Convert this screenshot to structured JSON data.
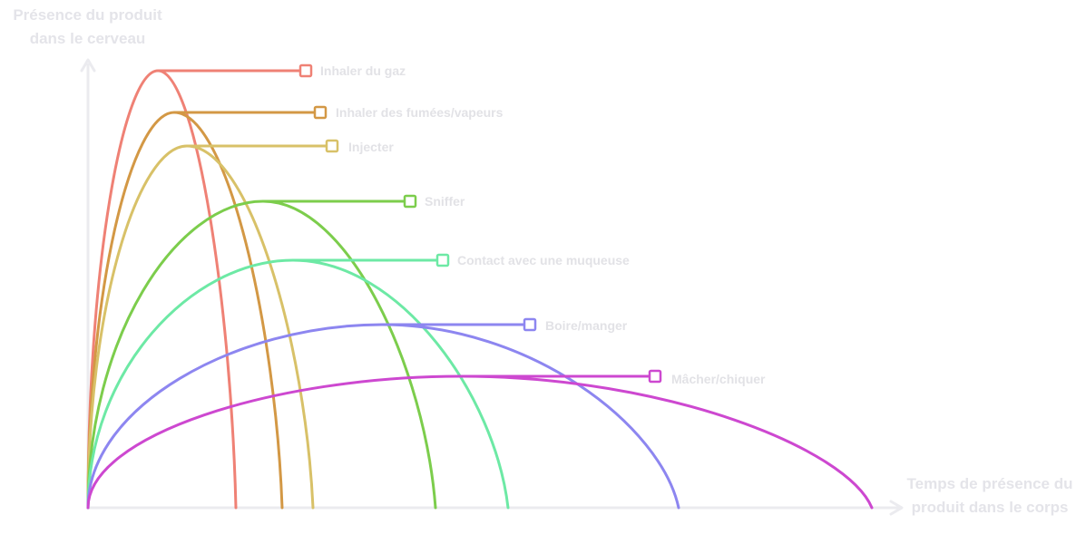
{
  "axes": {
    "y_title": "Présence du produit dans le cerveau",
    "x_title": "Temps de présence du produit dans le corps",
    "axis_color": "#ebebef",
    "title_color": "#e4e4e9"
  },
  "routes": [
    {
      "key": "gaz",
      "label": "Inhaler du gaz",
      "color": "#ef8175"
    },
    {
      "key": "fumees",
      "label": "Inhaler des fumées/vapeurs",
      "color": "#d39845"
    },
    {
      "key": "injecter",
      "label": "Injecter",
      "color": "#d8c168"
    },
    {
      "key": "sniffer",
      "label": "Sniffer",
      "color": "#7ccd4c"
    },
    {
      "key": "muqueuse",
      "label": "Contact avec une muqueuse",
      "color": "#6de9a5"
    },
    {
      "key": "boire",
      "label": "Boire/manger",
      "color": "#8d86f0"
    },
    {
      "key": "macher",
      "label": "Mâcher/chiquer",
      "color": "#cd48d0"
    }
  ]
}
